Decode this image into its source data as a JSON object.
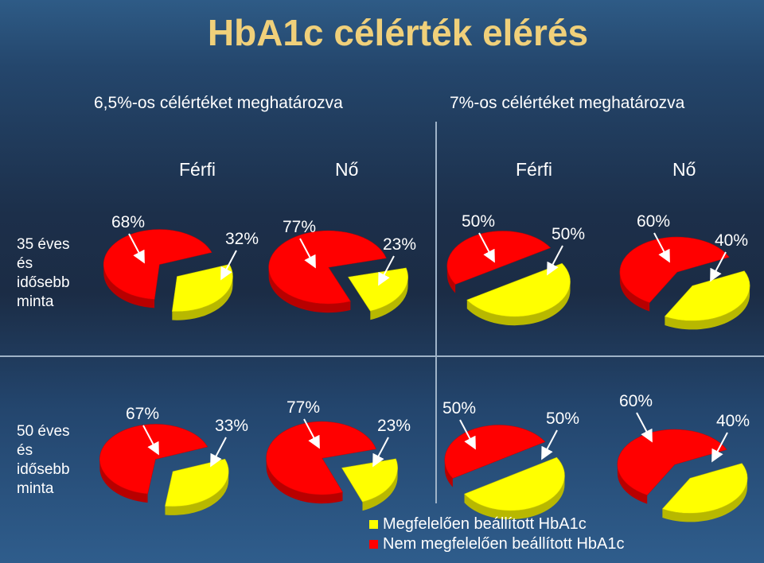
{
  "title": "HbA1c célérték elérés",
  "group_headers": [
    "6,5%-os célértéket meghatározva",
    "7%-os célértéket meghatározva"
  ],
  "sex_labels": [
    "Férfi",
    "Nő",
    "Férfi",
    "Nő"
  ],
  "row_labels": [
    [
      "35 éves",
      "és",
      "idősebb",
      "minta"
    ],
    [
      "50 éves",
      "és",
      "idősebb",
      "minta"
    ]
  ],
  "colors": {
    "achieved": "#ffff00",
    "not_achieved": "#ff0000"
  },
  "legend": [
    {
      "label": "Megfelelően beállított HbA1c",
      "color": "#ffff00"
    },
    {
      "label": "Nem megfelelően beállított HbA1c",
      "color": "#ff0000"
    }
  ],
  "chart_data": [
    {
      "type": "pie",
      "row": "35 éves és idősebb minta",
      "group": "6,5%-os célértéket meghatározva",
      "sex": "Férfi",
      "slices": [
        {
          "name": "Nem megfelelően beállított HbA1c",
          "value": 68,
          "label": "68%"
        },
        {
          "name": "Megfelelően beállított HbA1c",
          "value": 32,
          "label": "32%"
        }
      ]
    },
    {
      "type": "pie",
      "row": "35 éves és idősebb minta",
      "group": "6,5%-os célértéket meghatározva",
      "sex": "Nő",
      "slices": [
        {
          "name": "Nem megfelelően beállított HbA1c",
          "value": 77,
          "label": "77%"
        },
        {
          "name": "Megfelelően beállított HbA1c",
          "value": 23,
          "label": "23%"
        }
      ]
    },
    {
      "type": "pie",
      "row": "35 éves és idősebb minta",
      "group": "7%-os célértéket meghatározva",
      "sex": "Férfi",
      "slices": [
        {
          "name": "Nem megfelelően beállított HbA1c",
          "value": 50,
          "label": "50%"
        },
        {
          "name": "Megfelelően beállított HbA1c",
          "value": 50,
          "label": "50%"
        }
      ]
    },
    {
      "type": "pie",
      "row": "35 éves és idősebb minta",
      "group": "7%-os célértéket meghatározva",
      "sex": "Nő",
      "slices": [
        {
          "name": "Nem megfelelően beállított HbA1c",
          "value": 60,
          "label": "60%"
        },
        {
          "name": "Megfelelően beállított HbA1c",
          "value": 40,
          "label": "40%"
        }
      ]
    },
    {
      "type": "pie",
      "row": "50 éves és idősebb minta",
      "group": "6,5%-os célértéket meghatározva",
      "sex": "Férfi",
      "slices": [
        {
          "name": "Nem megfelelően beállított HbA1c",
          "value": 67,
          "label": "67%"
        },
        {
          "name": "Megfelelően beállított HbA1c",
          "value": 33,
          "label": "33%"
        }
      ]
    },
    {
      "type": "pie",
      "row": "50 éves és idősebb minta",
      "group": "6,5%-os célértéket meghatározva",
      "sex": "Nő",
      "slices": [
        {
          "name": "Nem megfelelően beállított HbA1c",
          "value": 77,
          "label": "77%"
        },
        {
          "name": "Megfelelően beállított HbA1c",
          "value": 23,
          "label": "23%"
        }
      ]
    },
    {
      "type": "pie",
      "row": "50 éves és idősebb minta",
      "group": "7%-os célértéket meghatározva",
      "sex": "Férfi",
      "slices": [
        {
          "name": "Nem megfelelően beállított HbA1c",
          "value": 50,
          "label": "50%"
        },
        {
          "name": "Megfelelően beállított HbA1c",
          "value": 50,
          "label": "50%"
        }
      ]
    },
    {
      "type": "pie",
      "row": "50 éves és idősebb minta",
      "group": "7%-os célértéket meghatározva",
      "sex": "Nő",
      "slices": [
        {
          "name": "Nem megfelelően beállított HbA1c",
          "value": 60,
          "label": "60%"
        },
        {
          "name": "Megfelelően beállított HbA1c",
          "value": 40,
          "label": "40%"
        }
      ]
    }
  ]
}
